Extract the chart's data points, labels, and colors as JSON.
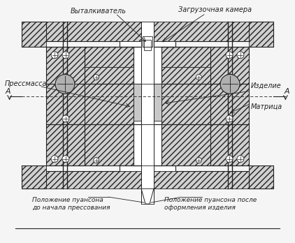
{
  "bg_color": "#f5f5f5",
  "line_color": "#222222",
  "hatch_fc": "#d0d0d0",
  "labels": {
    "vyt": "Выталкиватель",
    "zag": "Загрузочная камера",
    "press": "Прессмасса",
    "izdelie": "Изделие",
    "matrica": "Матрица",
    "poz1": "Положение пуансона\nдо начала прессования",
    "poz2": "Положение пуансона после\nоформления изделия",
    "A": "А"
  },
  "font_size": 7.0
}
